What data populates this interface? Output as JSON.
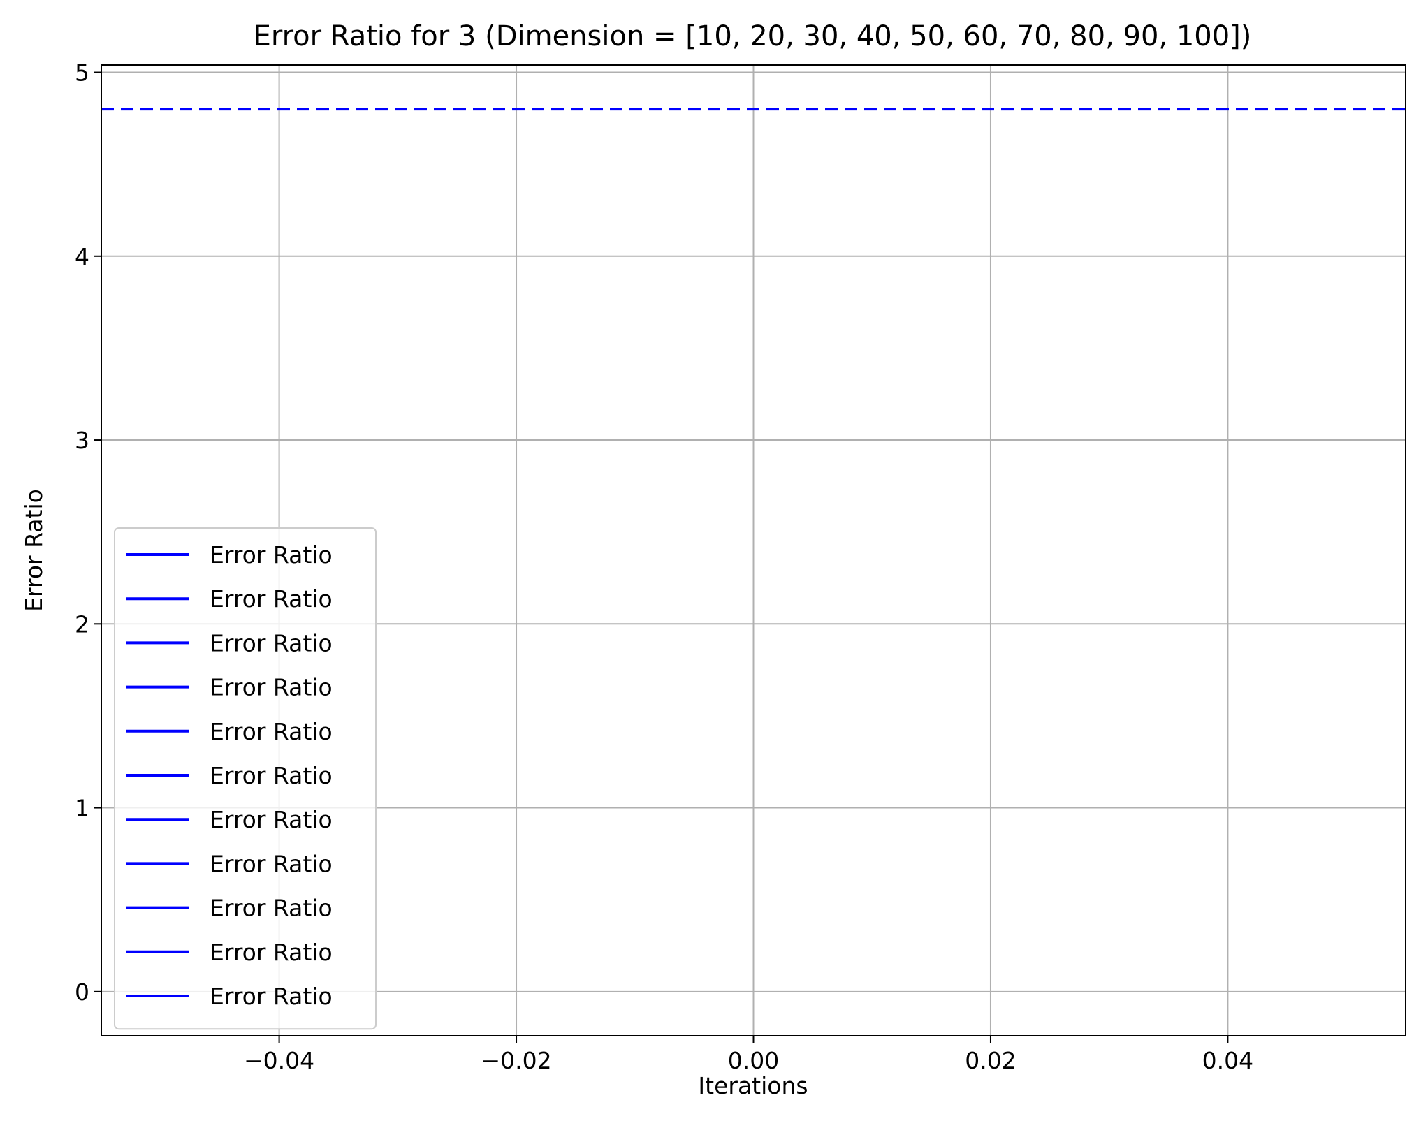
{
  "chart_data": {
    "type": "line",
    "title": "Error Ratio for 3 (Dimension = [10, 20, 30, 40, 50, 60, 70, 80, 90, 100])",
    "xlabel": "Iterations",
    "ylabel": "Error Ratio",
    "xlim": [
      -0.055,
      0.055
    ],
    "ylim": [
      -0.24,
      5.04
    ],
    "x_ticks": [
      -0.04,
      -0.02,
      0.0,
      0.02,
      0.04
    ],
    "x_tick_labels": [
      "−0.04",
      "−0.02",
      "0.00",
      "0.02",
      "0.04"
    ],
    "y_ticks": [
      0,
      1,
      2,
      3,
      4,
      5
    ],
    "y_tick_labels": [
      "0",
      "1",
      "2",
      "3",
      "4",
      "5"
    ],
    "grid": true,
    "legend_position": "lower left",
    "series": [
      {
        "name": "Error Ratio",
        "x": [
          0
        ],
        "y": [
          null
        ],
        "color": "#0000ff",
        "style": "solid"
      },
      {
        "name": "Error Ratio",
        "x": [
          0
        ],
        "y": [
          null
        ],
        "color": "#0000ff",
        "style": "solid"
      },
      {
        "name": "Error Ratio",
        "x": [
          0
        ],
        "y": [
          null
        ],
        "color": "#0000ff",
        "style": "solid"
      },
      {
        "name": "Error Ratio",
        "x": [
          0
        ],
        "y": [
          null
        ],
        "color": "#0000ff",
        "style": "solid"
      },
      {
        "name": "Error Ratio",
        "x": [
          0
        ],
        "y": [
          null
        ],
        "color": "#0000ff",
        "style": "solid"
      },
      {
        "name": "Error Ratio",
        "x": [
          0
        ],
        "y": [
          null
        ],
        "color": "#0000ff",
        "style": "solid"
      },
      {
        "name": "Error Ratio",
        "x": [
          0
        ],
        "y": [
          null
        ],
        "color": "#0000ff",
        "style": "solid"
      },
      {
        "name": "Error Ratio",
        "x": [
          0
        ],
        "y": [
          null
        ],
        "color": "#0000ff",
        "style": "solid"
      },
      {
        "name": "Error Ratio",
        "x": [
          0
        ],
        "y": [
          null
        ],
        "color": "#0000ff",
        "style": "solid"
      },
      {
        "name": "Error Ratio",
        "x": [
          0
        ],
        "y": [
          null
        ],
        "color": "#0000ff",
        "style": "solid"
      },
      {
        "name": "Error Ratio",
        "x": [
          0
        ],
        "y": [
          null
        ],
        "color": "#0000ff",
        "style": "solid"
      }
    ],
    "reference_line": {
      "y": 4.8,
      "color": "#0000ff",
      "style": "dashed"
    },
    "colors": {
      "series": "#0000ff",
      "grid": "#b0b0b0",
      "axes": "#000000"
    }
  }
}
